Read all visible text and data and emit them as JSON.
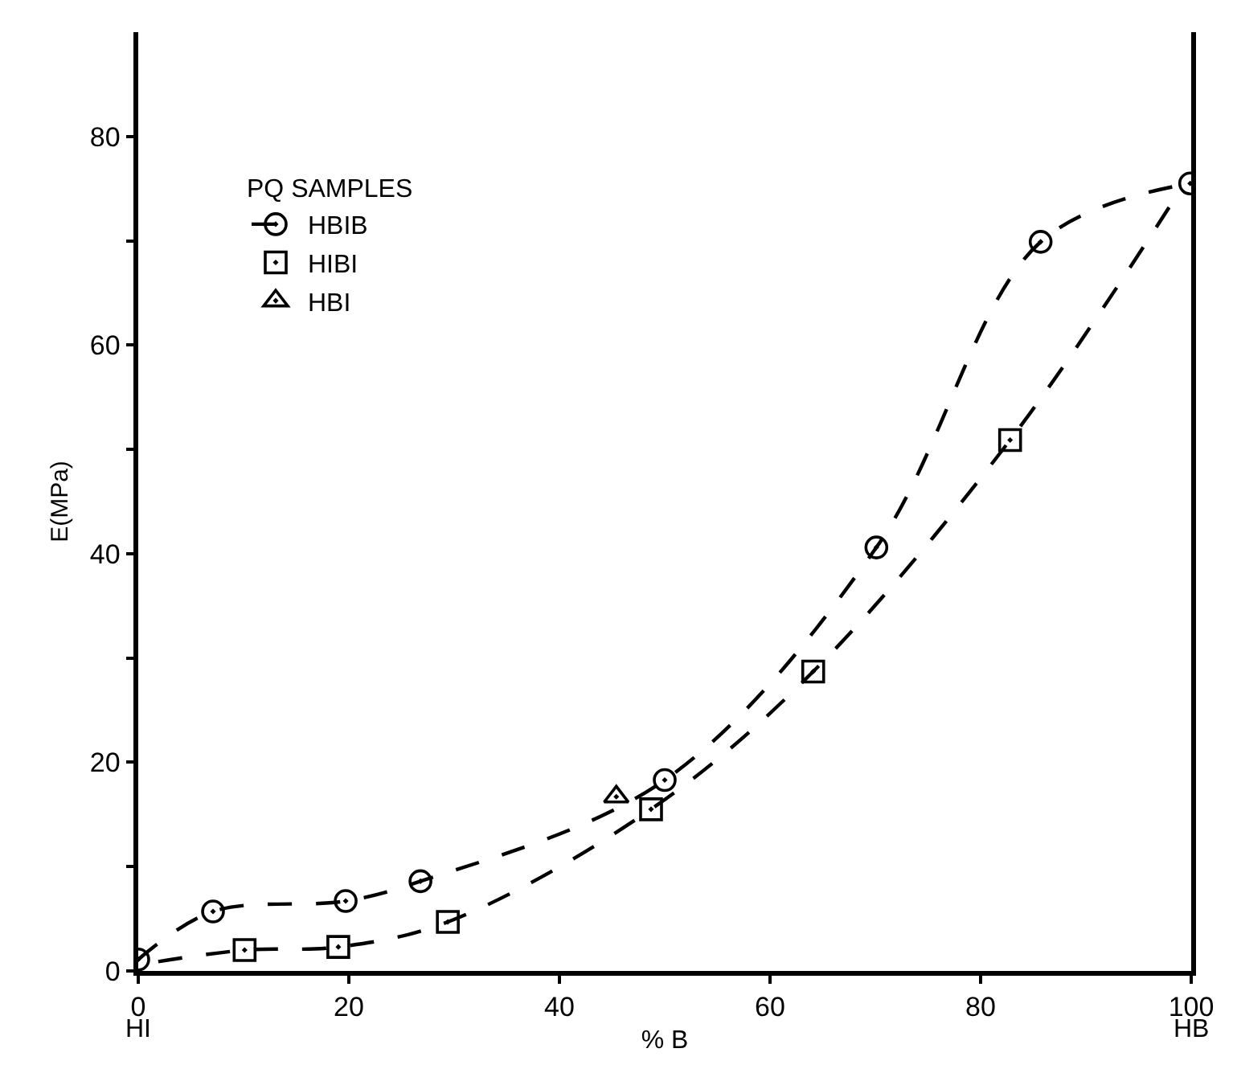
{
  "chart_data": {
    "type": "line",
    "xlabel": "% B",
    "ylabel": "E(MPa)",
    "legend_title": "PQ SAMPLES",
    "xlim": [
      0,
      100
    ],
    "xticks": [
      0,
      20,
      40,
      60,
      80,
      100
    ],
    "ylim": [
      0,
      90
    ],
    "yticks": [
      0,
      {
        "value": 10,
        "label": null
      },
      20,
      {
        "value": 30,
        "label": null
      },
      40,
      {
        "value": 50,
        "label": null
      },
      60,
      {
        "value": 70,
        "label": null
      },
      80
    ],
    "legend": "top left",
    "line_style": "dashed",
    "annotations": [
      "HI",
      "HB"
    ],
    "series": [
      {
        "name": "HBIB",
        "type": "line",
        "marker": "circle",
        "color": "#000000",
        "x": [
          0,
          7.1,
          19.7,
          26.8,
          50,
          70.1,
          85.7,
          99.9
        ],
        "values": [
          1.1,
          5.7,
          6.7,
          8.6,
          18.3,
          40.6,
          69.9,
          75.5
        ]
      },
      {
        "name": "HIBI",
        "type": "scatter",
        "marker": "square",
        "color": "#000000",
        "x": [
          10.1,
          19,
          29.4,
          48.7,
          64.1,
          82.8
        ],
        "values": [
          2.0,
          2.3,
          4.7,
          15.5,
          28.7,
          50.9
        ]
      },
      {
        "marker": "none",
        "color": "#000000",
        "x": [
          1.9,
          10.1,
          19,
          29.4,
          48.7,
          64.1,
          82.8,
          97.9
        ],
        "values": [
          0.9,
          2.0,
          2.3,
          4.7,
          15.5,
          28.7,
          50.9,
          73.2
        ]
      },
      {
        "name": "HBI",
        "type": "scatter",
        "marker": "triangle",
        "color": "#000000",
        "x": [
          45.4
        ],
        "values": [
          16.7
        ]
      }
    ]
  }
}
